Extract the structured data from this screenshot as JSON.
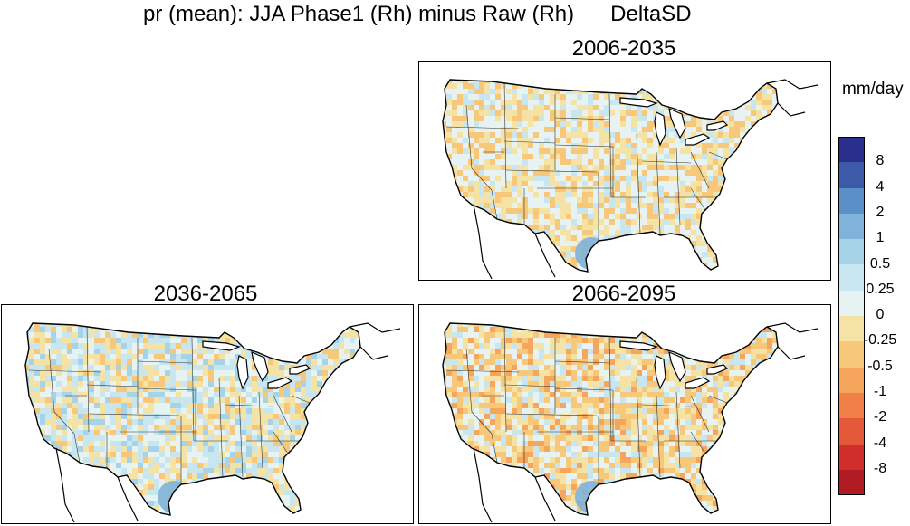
{
  "figure": {
    "title_left": "pr (mean): JJA Phase1 (Rh) minus Raw (Rh)",
    "title_right": "DeltaSD",
    "units": "mm/day"
  },
  "panels": [
    {
      "title": "2006-2035"
    },
    {
      "title": "2036-2065"
    },
    {
      "title": "2066-2095"
    }
  ],
  "colorbar": {
    "colors": [
      "#2a2e8c",
      "#3c5aa8",
      "#5a8fc8",
      "#7fb3d9",
      "#a6d3e8",
      "#c8e6f0",
      "#e6f3f2",
      "#f5e3a6",
      "#f7c77a",
      "#f5a55c",
      "#f08048",
      "#e35838",
      "#cf2e2a",
      "#b01c22"
    ],
    "labels": [
      "8",
      "4",
      "2",
      "1",
      "0.5",
      "0.25",
      "0",
      "-0.25",
      "-0.5",
      "-1",
      "-2",
      "-4",
      "-8"
    ]
  }
}
